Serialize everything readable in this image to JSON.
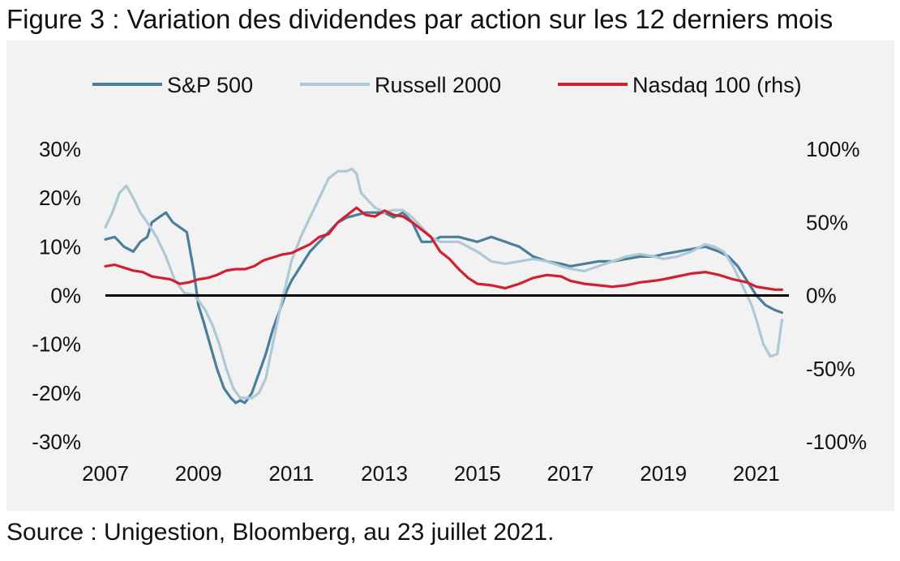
{
  "title": "Figure 3 : Variation des dividendes par action sur les 12 derniers mois",
  "source": "Source : Unigestion, Bloomberg, au 23 juillet 2021.",
  "chart_data": {
    "type": "line",
    "grid": false,
    "legend_position": "top",
    "x_ticks": [
      "2007",
      "2009",
      "2011",
      "2013",
      "2015",
      "2017",
      "2019",
      "2021"
    ],
    "xlim": [
      2007,
      2021.7
    ],
    "y_left": {
      "lim": [
        -30,
        30
      ],
      "ticks": [
        30,
        20,
        10,
        0,
        -10,
        -20,
        -30
      ],
      "tick_labels": [
        "30%",
        "20%",
        "10%",
        "0%",
        "-10%",
        "-20%",
        "-30%"
      ]
    },
    "y_right": {
      "lim": [
        -100,
        100
      ],
      "ticks": [
        100,
        50,
        0,
        -50,
        -100
      ],
      "tick_labels": [
        "100%",
        "50%",
        "0%",
        "-50%",
        "-100%"
      ]
    },
    "series": [
      {
        "name": "S&P 500",
        "axis": "left",
        "color": "#4a7f9c",
        "x": [
          2007.0,
          2007.2,
          2007.4,
          2007.6,
          2007.75,
          2007.9,
          2008.0,
          2008.15,
          2008.3,
          2008.45,
          2008.6,
          2008.75,
          2008.9,
          2009.0,
          2009.1,
          2009.25,
          2009.4,
          2009.55,
          2009.7,
          2009.8,
          2009.9,
          2010.0,
          2010.15,
          2010.3,
          2010.45,
          2010.6,
          2010.75,
          2010.9,
          2011.0,
          2011.2,
          2011.4,
          2011.6,
          2011.8,
          2012.0,
          2012.2,
          2012.4,
          2012.6,
          2012.8,
          2013.0,
          2013.2,
          2013.4,
          2013.6,
          2013.8,
          2014.0,
          2014.2,
          2014.4,
          2014.6,
          2014.8,
          2015.0,
          2015.3,
          2015.6,
          2015.9,
          2016.2,
          2016.5,
          2016.8,
          2017.0,
          2017.3,
          2017.6,
          2017.9,
          2018.2,
          2018.5,
          2018.8,
          2019.0,
          2019.3,
          2019.6,
          2019.9,
          2020.2,
          2020.4,
          2020.6,
          2020.8,
          2021.0,
          2021.2,
          2021.4,
          2021.55
        ],
        "values": [
          11.5,
          12,
          10,
          9,
          11,
          12,
          15,
          16,
          17,
          15,
          14,
          13,
          5,
          -2,
          -5,
          -10,
          -15,
          -19,
          -21,
          -22,
          -21.5,
          -22,
          -20,
          -16,
          -12,
          -7,
          -3,
          1,
          3,
          6,
          9,
          11,
          13,
          15,
          16,
          16.5,
          17,
          17,
          17,
          16,
          17,
          15,
          11,
          11,
          12,
          12,
          12,
          11.5,
          11,
          12,
          11,
          10,
          8,
          7,
          6.5,
          6,
          6.5,
          7,
          7,
          7.5,
          8,
          8,
          8.5,
          9,
          9.5,
          10,
          9,
          8,
          6,
          3,
          0,
          -2,
          -3,
          -3.5
        ]
      },
      {
        "name": "Russell 2000",
        "axis": "left",
        "color": "#aec8d5",
        "x": [
          2007.0,
          2007.15,
          2007.3,
          2007.45,
          2007.6,
          2007.75,
          2007.9,
          2008.1,
          2008.3,
          2008.5,
          2008.7,
          2008.9,
          2009.0,
          2009.15,
          2009.3,
          2009.45,
          2009.6,
          2009.75,
          2009.9,
          2010.0,
          2010.15,
          2010.3,
          2010.45,
          2010.6,
          2010.75,
          2010.9,
          2011.0,
          2011.2,
          2011.4,
          2011.6,
          2011.8,
          2012.0,
          2012.1,
          2012.2,
          2012.3,
          2012.4,
          2012.5,
          2012.6,
          2012.8,
          2013.0,
          2013.2,
          2013.4,
          2013.6,
          2013.8,
          2014.0,
          2014.2,
          2014.4,
          2014.6,
          2014.8,
          2015.0,
          2015.3,
          2015.6,
          2015.9,
          2016.2,
          2016.5,
          2016.8,
          2017.0,
          2017.3,
          2017.6,
          2017.9,
          2018.2,
          2018.5,
          2018.8,
          2019.0,
          2019.3,
          2019.6,
          2019.9,
          2020.1,
          2020.3,
          2020.5,
          2020.7,
          2020.9,
          2021.0,
          2021.15,
          2021.3,
          2021.45,
          2021.55
        ],
        "values": [
          14,
          17,
          21,
          22.5,
          20,
          17,
          15,
          12,
          8,
          3,
          0.5,
          0.2,
          -1,
          -3,
          -6,
          -10,
          -15,
          -19,
          -21,
          -21,
          -21,
          -20,
          -17,
          -10,
          -3,
          3,
          7,
          12,
          16,
          20,
          24,
          25.5,
          25.5,
          25.5,
          26,
          25,
          21,
          20,
          18,
          17,
          17.5,
          17.5,
          16,
          14,
          12,
          11,
          11,
          11,
          10,
          9,
          7,
          6.5,
          7,
          7.5,
          7,
          6,
          5.5,
          5,
          6,
          7,
          8,
          8.5,
          8,
          7.5,
          8,
          9,
          10.5,
          10,
          9,
          6,
          2,
          -2,
          -5,
          -10,
          -12.5,
          -12,
          -5
        ]
      },
      {
        "name": "Nasdaq 100 (rhs)",
        "axis": "right",
        "color": "#d21f32",
        "x": [
          2007.0,
          2007.2,
          2007.4,
          2007.6,
          2007.8,
          2008.0,
          2008.2,
          2008.4,
          2008.6,
          2008.8,
          2009.0,
          2009.2,
          2009.4,
          2009.6,
          2009.8,
          2010.0,
          2010.2,
          2010.4,
          2010.6,
          2010.8,
          2011.0,
          2011.2,
          2011.4,
          2011.6,
          2011.8,
          2012.0,
          2012.2,
          2012.4,
          2012.6,
          2012.8,
          2013.0,
          2013.2,
          2013.4,
          2013.6,
          2013.8,
          2014.0,
          2014.2,
          2014.4,
          2014.6,
          2014.8,
          2015.0,
          2015.3,
          2015.6,
          2015.9,
          2016.2,
          2016.5,
          2016.8,
          2017.0,
          2017.3,
          2017.6,
          2017.9,
          2018.2,
          2018.5,
          2018.8,
          2019.0,
          2019.3,
          2019.6,
          2019.9,
          2020.2,
          2020.5,
          2020.8,
          2021.0,
          2021.2,
          2021.4,
          2021.55
        ],
        "values": [
          20,
          21,
          19,
          17,
          16,
          13,
          12,
          11,
          8,
          9,
          11,
          12,
          14,
          17,
          18,
          18,
          20,
          24,
          26,
          28,
          29,
          32,
          35,
          40,
          42,
          50,
          55,
          60,
          55,
          54,
          58,
          55,
          54,
          50,
          45,
          40,
          30,
          25,
          18,
          12,
          8,
          7,
          5,
          8,
          12,
          14,
          13,
          10,
          8,
          7,
          6,
          7,
          9,
          10,
          11,
          13,
          15,
          16,
          14,
          11,
          9,
          6,
          5,
          4,
          4
        ]
      }
    ]
  }
}
